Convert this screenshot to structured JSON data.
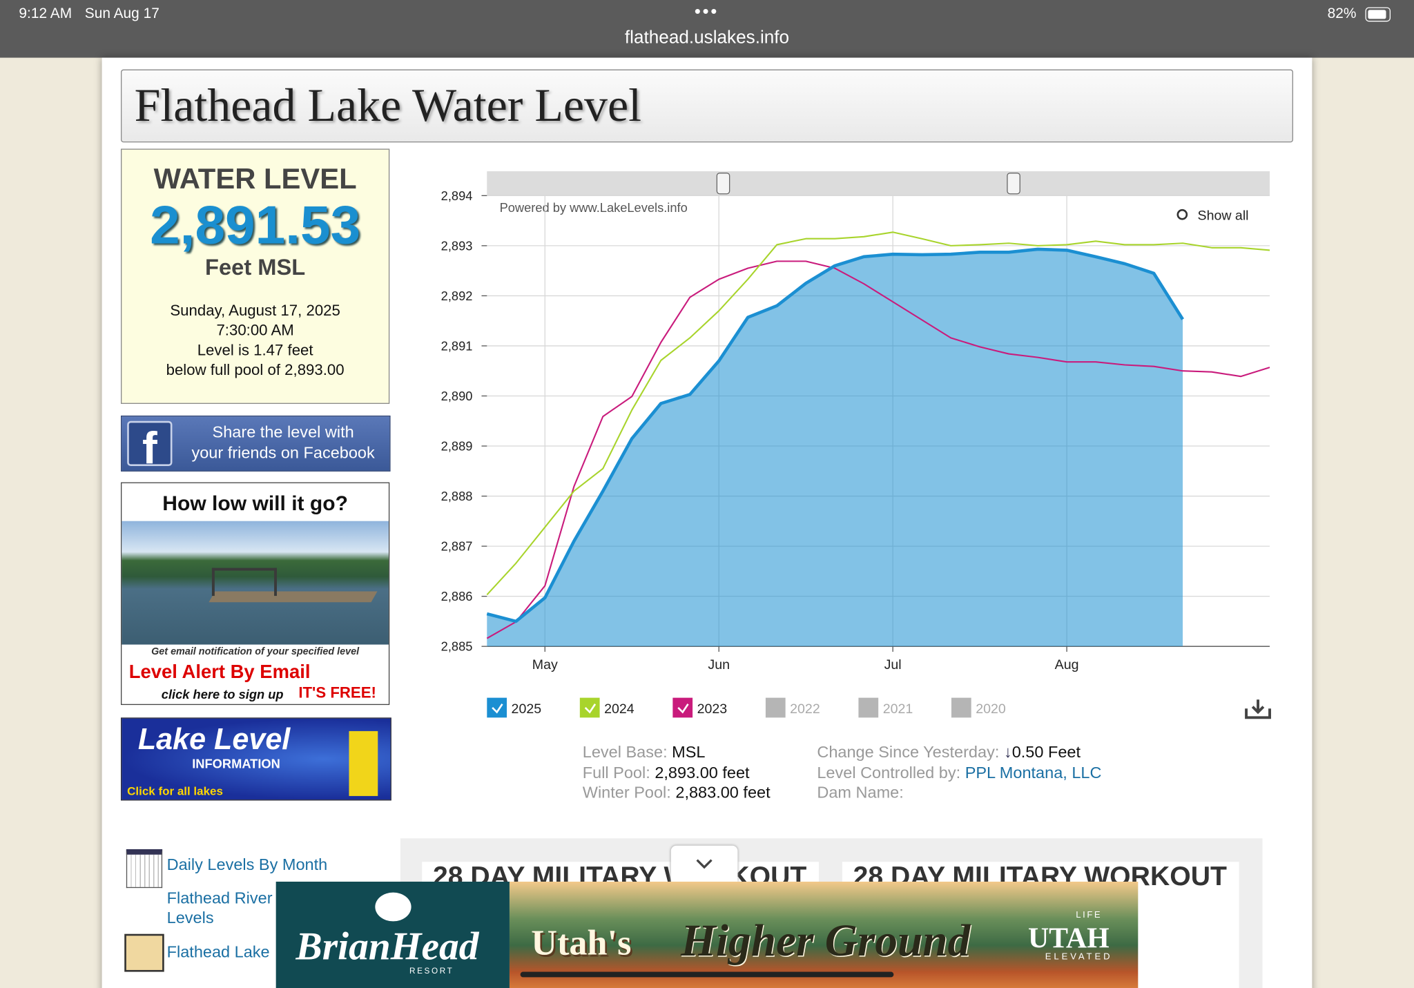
{
  "status_bar": {
    "time": "9:12 AM",
    "date": "Sun Aug 17",
    "url": "flathead.uslakes.info",
    "battery": "82%"
  },
  "header": {
    "title": "Flathead Lake Water Level"
  },
  "level_panel": {
    "heading": "WATER LEVEL",
    "value": "2,891.53",
    "unit": "Feet MSL",
    "date": "Sunday, August 17, 2025",
    "time": "7:30:00 AM",
    "note_1": "Level is 1.47 feet",
    "note_2": "below full pool of 2,893.00"
  },
  "facebook": {
    "line_1": "Share the level with",
    "line_2": "your friends on Facebook"
  },
  "alert_ad": {
    "heading": "How low will it go?",
    "note": "Get email notification of your specified level",
    "title": "Level Alert By Email",
    "sign_up": "click here to sign up",
    "free": "IT'S FREE!"
  },
  "lake_level_banner": {
    "title": "Lake Level",
    "subtitle": "INFORMATION",
    "link": "Click for all lakes"
  },
  "chart_data": {
    "type": "line",
    "credit": "Powered by www.LakeLevels.info",
    "show_all": "Show all",
    "categories": [
      null,
      null,
      "May",
      null,
      null,
      null,
      null,
      null,
      "Jun",
      null,
      null,
      null,
      null,
      null,
      "Jul",
      null,
      null,
      null,
      null,
      null,
      "Aug",
      null,
      null,
      null,
      null,
      null,
      null,
      null
    ],
    "ylim": [
      2885,
      2894
    ],
    "yticks": [
      {
        "value": 2885,
        "label": "2,885"
      },
      {
        "value": 2886,
        "label": "2,886"
      },
      {
        "value": 2887,
        "label": "2,887"
      },
      {
        "value": 2888,
        "label": "2,888"
      },
      {
        "value": 2889,
        "label": "2,889"
      },
      {
        "value": 2890,
        "label": "2,890"
      },
      {
        "value": 2891,
        "label": "2,891"
      },
      {
        "value": 2892,
        "label": "2,892"
      },
      {
        "value": 2893,
        "label": "2,893"
      },
      {
        "value": 2894,
        "label": "2,894"
      }
    ],
    "grid": true,
    "area_series": "2025",
    "series": [
      {
        "name": "2025",
        "color": "#1b8fd2",
        "values": [
          2885.65,
          2885.5,
          2885.97,
          2887.1,
          2888.1,
          2889.15,
          2889.85,
          2890.03,
          2890.7,
          2891.57,
          2891.8,
          2892.25,
          2892.6,
          2892.78,
          2892.83,
          2892.82,
          2892.83,
          2892.87,
          2892.87,
          2892.93,
          2892.91,
          2892.78,
          2892.64,
          2892.45,
          2891.53,
          null,
          null,
          null
        ]
      },
      {
        "name": "2024",
        "color": "#a8d42c",
        "values": [
          2886.03,
          2886.66,
          2887.38,
          2888.1,
          2888.55,
          2889.72,
          2890.71,
          2891.16,
          2891.7,
          2892.33,
          2893.02,
          2893.14,
          2893.14,
          2893.18,
          2893.27,
          2893.14,
          2893.0,
          2893.02,
          2893.05,
          2893.0,
          2893.02,
          2893.09,
          2893.02,
          2893.02,
          2893.05,
          2892.96,
          2892.96,
          2892.91
        ]
      },
      {
        "name": "2023",
        "color": "#c91b7c",
        "values": [
          2885.16,
          2885.49,
          2886.21,
          2888.19,
          2889.59,
          2889.99,
          2891.07,
          2891.97,
          2892.33,
          2892.55,
          2892.69,
          2892.69,
          2892.55,
          2892.24,
          2891.88,
          2891.52,
          2891.16,
          2890.98,
          2890.84,
          2890.77,
          2890.68,
          2890.68,
          2890.62,
          2890.59,
          2890.5,
          2890.48,
          2890.39,
          2890.57
        ]
      }
    ],
    "inactive_legend": [
      "2022",
      "2021",
      "2020"
    ]
  },
  "info": {
    "left": [
      [
        "Level Base:",
        "MSL"
      ],
      [
        "Full Pool:",
        "2,893.00 feet"
      ],
      [
        "Winter Pool:",
        "2,883.00 feet"
      ]
    ],
    "right": [
      [
        "Change Since Yesterday:",
        "0.50 Feet"
      ],
      [
        "Level Controlled by:",
        "PPL Montana, LLC"
      ],
      [
        "Dam Name:"
      ]
    ]
  },
  "links": [
    "Daily Levels By Month",
    "Flathead River",
    "Levels",
    "Flathead Lake"
  ],
  "ads": {
    "brand": "BrianHead",
    "brand_sub": "RESORT",
    "slogan_1": "Utah's",
    "slogan_2": "Higher Ground",
    "life": "LIFE",
    "state": "UTAH",
    "elevated": "ELEVATED",
    "bg_ad": "28 DAY MILITARY WORKOUT"
  }
}
